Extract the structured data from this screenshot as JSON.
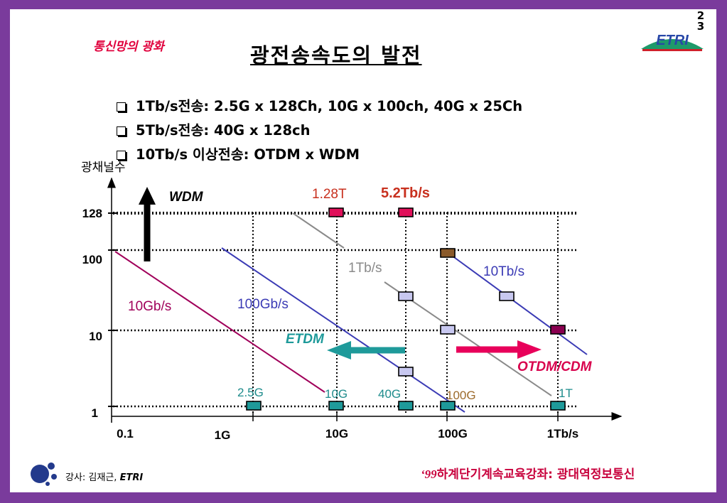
{
  "header": {
    "page_number": [
      "2",
      "3"
    ],
    "topic": "통신망의 광화",
    "title": "광전송속도의 발전",
    "logo_text": "ETRI"
  },
  "bullets": [
    "1Tb/s전송: 2.5G x 128Ch, 10G x 100ch, 40G x 25Ch",
    "5Tb/s전송: 40G x 128ch",
    "10Tb/s 이상전송: OTDM x WDM"
  ],
  "footer": {
    "instructor_label": "강사: 김재근, ",
    "instructor_org": "ETRI",
    "course_year": "‘99",
    "course_name": "하계단기계속교육강좌: 광대역정보통신"
  },
  "chart_data": {
    "type": "scatter",
    "ylabel": "광채널수",
    "y_ticks": [
      "1",
      "10",
      "100",
      "128"
    ],
    "x_ticks": [
      "0.1",
      "1G",
      "10G",
      "100G",
      "1Tb/s"
    ],
    "capacity_labels": [
      {
        "text": "10Gb/s",
        "color": "#a0005a"
      },
      {
        "text": "100Gb/s",
        "color": "#3b3bb5"
      },
      {
        "text": "1Tb/s",
        "color": "#8a8a8a"
      },
      {
        "text": "10Tb/s",
        "color": "#3b3bb5"
      }
    ],
    "milestones": [
      {
        "text": "1.28T",
        "color": "#c8301e"
      },
      {
        "text": "5.2Tb/s",
        "color": "#c8301e"
      }
    ],
    "rate_labels": [
      {
        "text": "2.5G",
        "color": "#1e8c8c"
      },
      {
        "text": "10G",
        "color": "#1e8c8c"
      },
      {
        "text": "40G",
        "color": "#1e8c8c"
      },
      {
        "text": "100G",
        "color": "#9c6a2a"
      },
      {
        "text": "1T",
        "color": "#1e8c8c"
      }
    ],
    "arrows": [
      {
        "text": "WDM",
        "color": "#000000"
      },
      {
        "text": "ETDM",
        "color": "#1e9a9a"
      },
      {
        "text": "OTDM/CDM",
        "color": "#d8004c"
      }
    ],
    "points": [
      {
        "rate": "2.5G",
        "channels": 1,
        "color": "#1e9a9a"
      },
      {
        "rate": "10G",
        "channels": 1,
        "color": "#1e9a9a"
      },
      {
        "rate": "40G",
        "channels": 1,
        "color": "#1e9a9a"
      },
      {
        "rate": "100G",
        "channels": 1,
        "color": "#1e9a9a"
      },
      {
        "rate": "1T",
        "channels": 1,
        "color": "#1e9a9a"
      },
      {
        "rate": "10G",
        "channels": 128,
        "color": "#e0105a"
      },
      {
        "rate": "40G",
        "channels": 128,
        "color": "#e0105a"
      },
      {
        "rate": "100G",
        "channels": 100,
        "color": "#8a5a2a"
      },
      {
        "rate": "40G",
        "channels": 25,
        "color": "#c8c8f0"
      },
      {
        "rate": "40G",
        "channels": 3,
        "color": "#c8c8f0"
      },
      {
        "rate": "100G",
        "channels": 10,
        "color": "#c8c8f0"
      },
      {
        "rate": "400G",
        "channels": 25,
        "color": "#c8c8f0"
      },
      {
        "rate": "1T",
        "channels": 10,
        "color": "#8a0050"
      }
    ]
  }
}
